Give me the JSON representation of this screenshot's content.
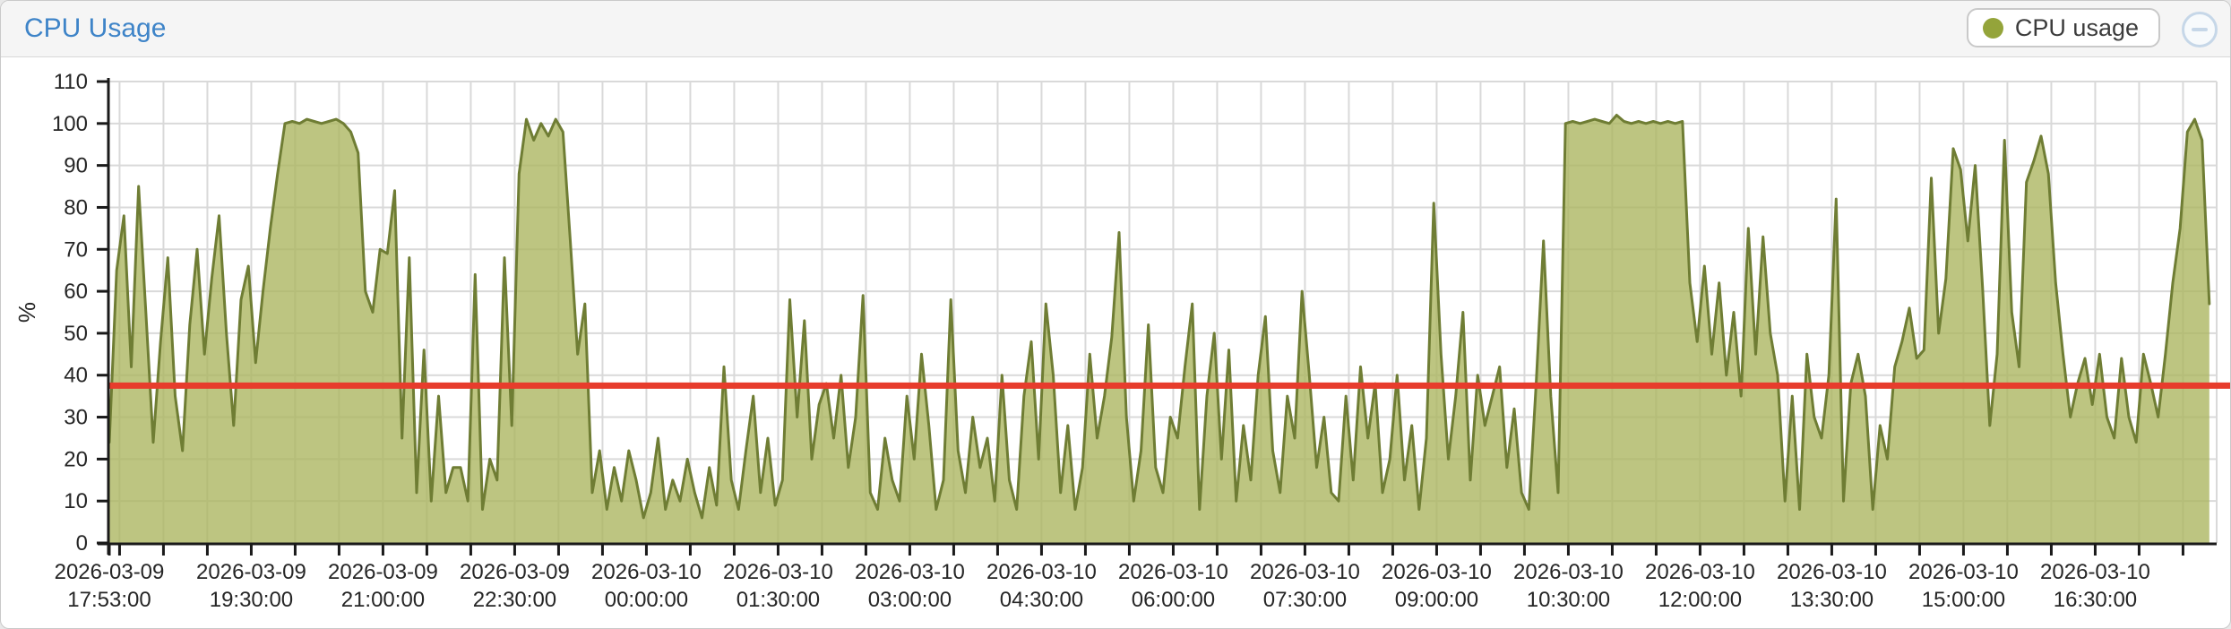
{
  "panel": {
    "title": "CPU Usage"
  },
  "legend": {
    "label": "CPU usage",
    "dot_color": "#94a43a"
  },
  "tools": {
    "collapse_icon": "minus-circle"
  },
  "colors": {
    "area_fill": "#aab55e",
    "area_stroke": "#6f7d34",
    "threshold_red": "#e73c2c",
    "grid": "#d9d9d9",
    "axis": "#1a1a1a",
    "title_blue": "#3e84c8",
    "header_bg": "#f5f5f5"
  },
  "chart_data": {
    "type": "area",
    "title": "CPU Usage",
    "ylabel": "%",
    "xlabel": "",
    "ylim": [
      0,
      110
    ],
    "ytick_step": 10,
    "grid": true,
    "legend_position": "top-right",
    "series_name": "CPU usage",
    "start_time": "2026-03-09 17:53:00",
    "interval_minutes": 5,
    "duration_minutes": 1440,
    "minor_tick_minutes": 30,
    "threshold_line": {
      "value": 37.5,
      "color": "#e73c2c"
    },
    "x_ticks": [
      {
        "date": "2026-03-09",
        "time": "17:53:00",
        "minutes": 0
      },
      {
        "date": "2026-03-09",
        "time": "19:30:00",
        "minutes": 97
      },
      {
        "date": "2026-03-09",
        "time": "21:00:00",
        "minutes": 187
      },
      {
        "date": "2026-03-09",
        "time": "22:30:00",
        "minutes": 277
      },
      {
        "date": "2026-03-10",
        "time": "00:00:00",
        "minutes": 367
      },
      {
        "date": "2026-03-10",
        "time": "01:30:00",
        "minutes": 457
      },
      {
        "date": "2026-03-10",
        "time": "03:00:00",
        "minutes": 547
      },
      {
        "date": "2026-03-10",
        "time": "04:30:00",
        "minutes": 637
      },
      {
        "date": "2026-03-10",
        "time": "06:00:00",
        "minutes": 727
      },
      {
        "date": "2026-03-10",
        "time": "07:30:00",
        "minutes": 817
      },
      {
        "date": "2026-03-10",
        "time": "09:00:00",
        "minutes": 907
      },
      {
        "date": "2026-03-10",
        "time": "10:30:00",
        "minutes": 997
      },
      {
        "date": "2026-03-10",
        "time": "12:00:00",
        "minutes": 1087
      },
      {
        "date": "2026-03-10",
        "time": "13:30:00",
        "minutes": 1177
      },
      {
        "date": "2026-03-10",
        "time": "15:00:00",
        "minutes": 1267
      },
      {
        "date": "2026-03-10",
        "time": "16:30:00",
        "minutes": 1357
      }
    ],
    "values": [
      24,
      65,
      78,
      42,
      85,
      55,
      24,
      48,
      68,
      35,
      22,
      52,
      70,
      45,
      63,
      78,
      50,
      28,
      58,
      66,
      43,
      60,
      75,
      88,
      100,
      100.5,
      100,
      101,
      100.5,
      100,
      100.5,
      101,
      100,
      98,
      93,
      60,
      55,
      70,
      69,
      84,
      25,
      68,
      12,
      46,
      10,
      35,
      12,
      18,
      18,
      10,
      64,
      8,
      20,
      15,
      68,
      28,
      88,
      101,
      96,
      100,
      97,
      101,
      98,
      72,
      45,
      57,
      12,
      22,
      8,
      18,
      10,
      22,
      15,
      6,
      12,
      25,
      8,
      15,
      10,
      20,
      12,
      6,
      18,
      9,
      42,
      15,
      8,
      22,
      35,
      12,
      25,
      9,
      15,
      58,
      30,
      53,
      20,
      33,
      38,
      25,
      40,
      18,
      30,
      59,
      12,
      8,
      25,
      15,
      10,
      35,
      20,
      45,
      28,
      8,
      15,
      58,
      22,
      12,
      30,
      18,
      25,
      10,
      40,
      15,
      8,
      35,
      48,
      20,
      57,
      40,
      12,
      28,
      8,
      18,
      45,
      25,
      35,
      49,
      74,
      30,
      10,
      22,
      52,
      18,
      12,
      30,
      25,
      42,
      57,
      8,
      35,
      50,
      20,
      46,
      10,
      28,
      15,
      40,
      54,
      22,
      12,
      35,
      25,
      60,
      40,
      18,
      30,
      12,
      10,
      35,
      15,
      42,
      25,
      38,
      12,
      20,
      40,
      15,
      28,
      8,
      25,
      81,
      45,
      20,
      35,
      55,
      15,
      40,
      28,
      35,
      42,
      18,
      32,
      12,
      8,
      38,
      72,
      35,
      12,
      100,
      100.5,
      100,
      100.5,
      101,
      100.5,
      100,
      102,
      100.5,
      100,
      100.5,
      100,
      100.5,
      100,
      100.5,
      100,
      100.5,
      62,
      48,
      66,
      45,
      62,
      40,
      55,
      35,
      75,
      45,
      73,
      50,
      40,
      10,
      35,
      8,
      45,
      30,
      25,
      40,
      82,
      10,
      38,
      45,
      35,
      8,
      28,
      20,
      42,
      48,
      56,
      44,
      46,
      87,
      50,
      63,
      94,
      89,
      72,
      90,
      61,
      28,
      45,
      96,
      55,
      42,
      86,
      91,
      97,
      88,
      62,
      45,
      30,
      38,
      44,
      33,
      45,
      30,
      25,
      44,
      30,
      24,
      45,
      38,
      30,
      45,
      62,
      75,
      98,
      101,
      96,
      57
    ]
  }
}
